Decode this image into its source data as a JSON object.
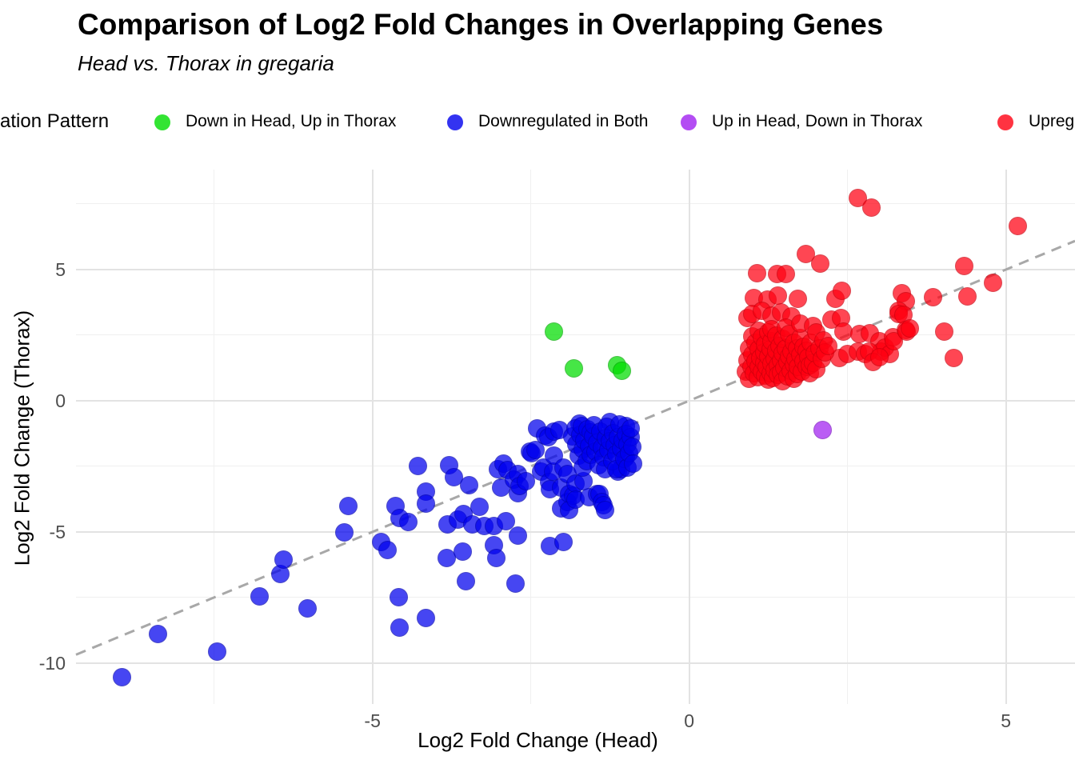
{
  "header": {
    "title": "Comparison of Log2 Fold Changes in Overlapping Genes",
    "subtitle": "Head vs. Thorax in gregaria"
  },
  "legend": {
    "title": "ation Pattern",
    "items": [
      {
        "label": "Down in Head, Up in Thorax",
        "color": "#00dd00"
      },
      {
        "label": "Downregulated in Both",
        "color": "#0000ee"
      },
      {
        "label": "Up in Head, Down in Thorax",
        "color": "#a020f0"
      },
      {
        "label": "Upregulated in Both",
        "color": "#ff0011"
      }
    ]
  },
  "chart_data": {
    "type": "scatter",
    "title": "Comparison of Log2 Fold Changes in Overlapping Genes",
    "subtitle": "Head vs. Thorax in gregaria",
    "xlabel": "Log2 Fold Change (Head)",
    "ylabel": "Log2 Fold Change (Thorax)",
    "xlim": [
      -9.68,
      6.09
    ],
    "ylim": [
      -11.56,
      8.81
    ],
    "x_ticks_major": [
      -5,
      0,
      5
    ],
    "x_ticks_minor": [
      -7.5,
      -2.5,
      2.5
    ],
    "y_ticks_major": [
      -10,
      -5,
      0,
      5
    ],
    "y_ticks_minor": [
      -7.5,
      -2.5,
      2.5,
      7.5
    ],
    "grid": true,
    "legend_position": "top",
    "reference_line": {
      "type": "identity",
      "slope": 1,
      "intercept": 0,
      "style": "dashed",
      "color": "#a8a8a8"
    },
    "point_alpha": 0.72,
    "point_radius": 11.5,
    "series": [
      {
        "name": "Down in Head, Up in Thorax",
        "color": "#00dd00",
        "edge": "#00aa00",
        "points": [
          [
            -2.13,
            2.65
          ],
          [
            -1.82,
            1.22
          ],
          [
            -1.14,
            1.34
          ],
          [
            -1.06,
            1.13
          ]
        ]
      },
      {
        "name": "Downregulated in Both",
        "color": "#0000ee",
        "edge": "#0000b4",
        "points": [
          [
            -8.96,
            -10.55
          ],
          [
            -8.38,
            -8.9
          ],
          [
            -7.45,
            -9.57
          ],
          [
            -6.78,
            -7.47
          ],
          [
            -6.46,
            -6.59
          ],
          [
            -6.4,
            -6.07
          ],
          [
            -6.03,
            -7.93
          ],
          [
            -5.45,
            -5.03
          ],
          [
            -5.38,
            -4.02
          ],
          [
            -4.86,
            -5.37
          ],
          [
            -4.76,
            -5.7
          ],
          [
            -4.64,
            -4.0
          ],
          [
            -4.59,
            -7.5
          ],
          [
            -4.57,
            -8.66
          ],
          [
            -4.57,
            -4.48
          ],
          [
            -4.44,
            -4.63
          ],
          [
            -4.28,
            -2.5
          ],
          [
            -4.15,
            -3.45
          ],
          [
            -4.15,
            -3.93
          ],
          [
            -4.15,
            -8.29
          ],
          [
            -3.83,
            -6.01
          ],
          [
            -3.81,
            -4.7
          ],
          [
            -3.79,
            -2.47
          ],
          [
            -3.72,
            -2.9
          ],
          [
            -3.65,
            -4.54
          ],
          [
            -3.58,
            -5.76
          ],
          [
            -3.56,
            -4.33
          ],
          [
            -3.52,
            -6.89
          ],
          [
            -3.48,
            -3.23
          ],
          [
            -3.43,
            -4.7
          ],
          [
            -3.31,
            -4.05
          ],
          [
            -3.24,
            -4.76
          ],
          [
            -3.08,
            -4.76
          ],
          [
            -3.08,
            -5.52
          ],
          [
            -3.05,
            -6.0
          ],
          [
            -3.02,
            -2.62
          ],
          [
            -2.97,
            -3.32
          ],
          [
            -2.93,
            -2.41
          ],
          [
            -2.89,
            -4.6
          ],
          [
            -2.87,
            -2.65
          ],
          [
            -2.77,
            -3.02
          ],
          [
            -2.74,
            -6.98
          ],
          [
            -2.71,
            -5.15
          ],
          [
            -2.71,
            -3.54
          ],
          [
            -2.7,
            -2.8
          ],
          [
            -2.68,
            -3.26
          ],
          [
            -2.58,
            -3.08
          ],
          [
            -2.51,
            -1.95
          ],
          [
            -2.49,
            -2.01
          ],
          [
            -2.42,
            -1.89
          ],
          [
            -2.4,
            -1.07
          ],
          [
            -2.34,
            -2.71
          ],
          [
            -2.3,
            -2.56
          ],
          [
            -2.27,
            -1.34
          ],
          [
            -2.23,
            -1.4
          ],
          [
            -2.21,
            -3.11
          ],
          [
            -2.2,
            -3.38
          ],
          [
            -2.2,
            -5.55
          ],
          [
            -2.15,
            -2.71
          ],
          [
            -2.13,
            -1.19
          ],
          [
            -2.13,
            -2.1
          ],
          [
            -2.05,
            -1.13
          ],
          [
            -2.02,
            -3.32
          ],
          [
            -2.02,
            -4.09
          ],
          [
            -1.98,
            -2.56
          ],
          [
            -1.98,
            -5.37
          ],
          [
            -1.92,
            -2.8
          ],
          [
            -1.92,
            -3.87
          ],
          [
            -1.89,
            -3.57
          ],
          [
            -1.89,
            -4.15
          ],
          [
            -1.83,
            -3.63
          ],
          [
            -1.79,
            -3.17
          ],
          [
            -1.79,
            -3.78
          ],
          [
            -1.73,
            -0.88
          ],
          [
            -1.67,
            -3.08
          ],
          [
            -1.58,
            -3.69
          ],
          [
            -1.45,
            -3.57
          ],
          [
            -1.41,
            -3.57
          ],
          [
            -1.38,
            -3.87
          ],
          [
            -1.35,
            -3.99
          ],
          [
            -1.33,
            -4.18
          ],
          [
            -1.25,
            -0.82
          ],
          [
            -1.12,
            -2.71
          ],
          [
            -1.07,
            -2.62
          ],
          [
            -1.0,
            -0.95
          ],
          [
            -1.0,
            -2.16
          ],
          [
            -1.85,
            -1.35
          ],
          [
            -1.8,
            -1.05
          ],
          [
            -1.78,
            -1.65
          ],
          [
            -1.75,
            -2.1
          ],
          [
            -1.72,
            -1.3
          ],
          [
            -1.7,
            -0.95
          ],
          [
            -1.68,
            -1.85
          ],
          [
            -1.68,
            -2.55
          ],
          [
            -1.65,
            -1.5
          ],
          [
            -1.62,
            -2.3
          ],
          [
            -1.6,
            -1.1
          ],
          [
            -1.58,
            -1.72
          ],
          [
            -1.55,
            -2.05
          ],
          [
            -1.55,
            -1.22
          ],
          [
            -1.52,
            -1.35
          ],
          [
            -1.5,
            -0.92
          ],
          [
            -1.48,
            -1.95
          ],
          [
            -1.45,
            -1.6
          ],
          [
            -1.43,
            -2.45
          ],
          [
            -1.4,
            -1.18
          ],
          [
            -1.38,
            -1.78
          ],
          [
            -1.35,
            -2.15
          ],
          [
            -1.33,
            -2.6
          ],
          [
            -1.32,
            -1.42
          ],
          [
            -1.3,
            -0.98
          ],
          [
            -1.28,
            -1.88
          ],
          [
            -1.25,
            -1.55
          ],
          [
            -1.22,
            -2.32
          ],
          [
            -1.2,
            -1.25
          ],
          [
            -1.18,
            -1.7
          ],
          [
            -1.15,
            -2.02
          ],
          [
            -1.15,
            -2.62
          ],
          [
            -1.12,
            -1.38
          ],
          [
            -1.1,
            -0.9
          ],
          [
            -1.08,
            -1.82
          ],
          [
            -1.05,
            -1.52
          ],
          [
            -1.02,
            -2.2
          ],
          [
            -1.0,
            -1.28
          ],
          [
            -0.98,
            -1.65
          ],
          [
            -0.98,
            -2.55
          ],
          [
            -0.95,
            -2.0
          ],
          [
            -0.93,
            -1.4
          ],
          [
            -0.92,
            -1.05
          ],
          [
            -0.9,
            -1.75
          ],
          [
            -0.88,
            -2.4
          ]
        ]
      },
      {
        "name": "Up in Head, Down in Thorax",
        "color": "#a020f0",
        "edge": "#7a10c0",
        "points": [
          [
            2.11,
            -1.13
          ]
        ]
      },
      {
        "name": "Upregulated in Both",
        "color": "#ff0011",
        "edge": "#cc000d",
        "points": [
          [
            2.66,
            7.74
          ],
          [
            2.88,
            7.35
          ],
          [
            5.19,
            6.65
          ],
          [
            1.84,
            5.58
          ],
          [
            2.07,
            5.24
          ],
          [
            4.34,
            5.15
          ],
          [
            4.8,
            4.51
          ],
          [
            1.07,
            4.85
          ],
          [
            1.39,
            4.82
          ],
          [
            1.52,
            4.82
          ],
          [
            1.02,
            3.93
          ],
          [
            1.24,
            3.84
          ],
          [
            1.4,
            4.02
          ],
          [
            1.72,
            3.87
          ],
          [
            2.31,
            3.87
          ],
          [
            2.41,
            4.18
          ],
          [
            3.36,
            4.09
          ],
          [
            3.42,
            3.78
          ],
          [
            3.85,
            3.96
          ],
          [
            4.39,
            3.99
          ],
          [
            0.92,
            3.15
          ],
          [
            1.0,
            3.3
          ],
          [
            1.15,
            3.42
          ],
          [
            1.3,
            3.25
          ],
          [
            1.45,
            3.38
          ],
          [
            1.62,
            3.2
          ],
          [
            2.25,
            3.08
          ],
          [
            2.4,
            3.14
          ],
          [
            3.3,
            3.44
          ],
          [
            3.31,
            3.32
          ],
          [
            3.38,
            3.29
          ],
          [
            2.44,
            2.62
          ],
          [
            2.69,
            2.53
          ],
          [
            2.85,
            2.56
          ],
          [
            3.0,
            2.26
          ],
          [
            3.03,
            1.86
          ],
          [
            3.09,
            2.01
          ],
          [
            3.17,
            1.77
          ],
          [
            3.22,
            2.41
          ],
          [
            3.23,
            2.26
          ],
          [
            3.42,
            2.71
          ],
          [
            3.43,
            2.62
          ],
          [
            3.48,
            2.77
          ],
          [
            4.02,
            2.65
          ],
          [
            4.18,
            1.62
          ],
          [
            2.37,
            1.62
          ],
          [
            2.5,
            1.77
          ],
          [
            2.66,
            1.86
          ],
          [
            2.78,
            1.77
          ],
          [
            2.84,
            1.86
          ],
          [
            2.9,
            1.49
          ],
          [
            3.0,
            1.65
          ],
          [
            0.9,
            1.1
          ],
          [
            0.92,
            1.55
          ],
          [
            0.95,
            2.0
          ],
          [
            0.95,
            0.85
          ],
          [
            0.98,
            1.3
          ],
          [
            1.0,
            1.75
          ],
          [
            1.0,
            2.45
          ],
          [
            1.02,
            1.05
          ],
          [
            1.05,
            1.5
          ],
          [
            1.05,
            2.2
          ],
          [
            1.08,
            0.9
          ],
          [
            1.1,
            1.28
          ],
          [
            1.1,
            1.95
          ],
          [
            1.1,
            2.68
          ],
          [
            1.12,
            1.62
          ],
          [
            1.15,
            1.1
          ],
          [
            1.15,
            2.42
          ],
          [
            1.18,
            1.45
          ],
          [
            1.18,
            1.85
          ],
          [
            1.2,
            0.95
          ],
          [
            1.2,
            2.15
          ],
          [
            1.22,
            1.3
          ],
          [
            1.25,
            1.68
          ],
          [
            1.25,
            2.6
          ],
          [
            1.25,
            0.8
          ],
          [
            1.28,
            1.05
          ],
          [
            1.28,
            1.95
          ],
          [
            1.3,
            1.42
          ],
          [
            1.3,
            2.28
          ],
          [
            1.3,
            2.72
          ],
          [
            1.32,
            0.88
          ],
          [
            1.35,
            1.6
          ],
          [
            1.35,
            1.18
          ],
          [
            1.38,
            1.9
          ],
          [
            1.38,
            2.48
          ],
          [
            1.4,
            1.35
          ],
          [
            1.4,
            0.98
          ],
          [
            1.42,
            2.1
          ],
          [
            1.45,
            1.55
          ],
          [
            1.45,
            1.08
          ],
          [
            1.48,
            1.8
          ],
          [
            1.48,
            2.35
          ],
          [
            1.48,
            0.75
          ],
          [
            1.5,
            1.25
          ],
          [
            1.52,
            1.98
          ],
          [
            1.52,
            2.8
          ],
          [
            1.55,
            1.48
          ],
          [
            1.55,
            0.92
          ],
          [
            1.58,
            1.7
          ],
          [
            1.58,
            2.55
          ],
          [
            1.6,
            1.15
          ],
          [
            1.62,
            1.88
          ],
          [
            1.65,
            1.38
          ],
          [
            1.65,
            2.22
          ],
          [
            1.65,
            0.85
          ],
          [
            1.68,
            1.6
          ],
          [
            1.7,
            1.02
          ],
          [
            1.7,
            2.0
          ],
          [
            1.72,
            1.3
          ],
          [
            1.75,
            1.75
          ],
          [
            1.75,
            2.4
          ],
          [
            1.75,
            2.95
          ],
          [
            1.78,
            1.12
          ],
          [
            1.8,
            1.52
          ],
          [
            1.8,
            2.05
          ],
          [
            1.85,
            1.28
          ],
          [
            1.85,
            1.9
          ],
          [
            1.88,
            1.65
          ],
          [
            1.9,
            1.05
          ],
          [
            1.9,
            1.35
          ],
          [
            1.92,
            2.2
          ],
          [
            1.95,
            1.45
          ],
          [
            1.95,
            2.85
          ],
          [
            1.98,
            1.8
          ],
          [
            2.0,
            1.2
          ],
          [
            2.0,
            2.6
          ],
          [
            2.05,
            2.0
          ],
          [
            2.1,
            1.6
          ],
          [
            2.12,
            2.3
          ],
          [
            2.15,
            1.85
          ],
          [
            2.2,
            2.1
          ]
        ]
      }
    ]
  }
}
